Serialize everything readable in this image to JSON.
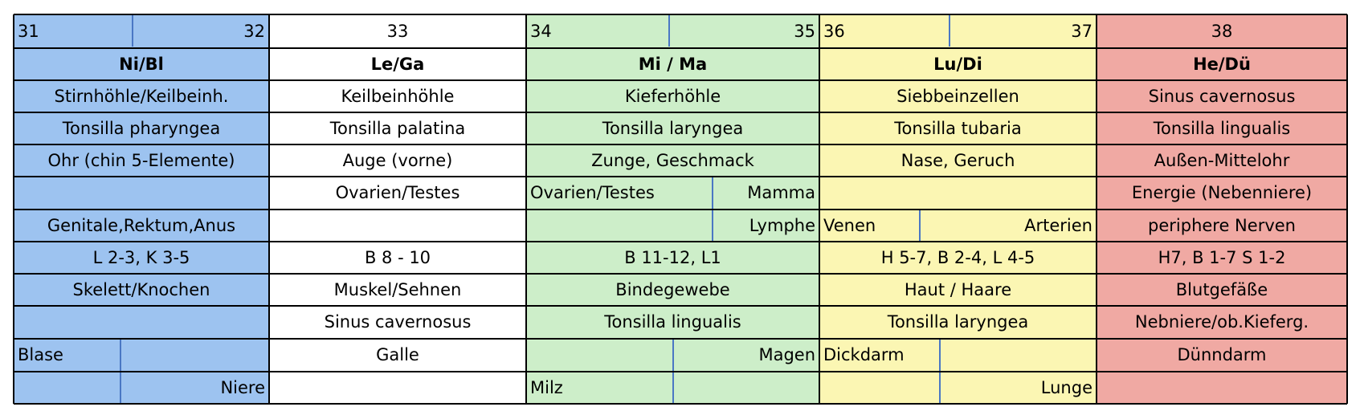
{
  "columns": [
    {
      "header_numbers": [
        "31",
        "32"
      ],
      "header": "Ni/Bl",
      "color": "#9dc3f0"
    },
    {
      "header_numbers": [
        "33"
      ],
      "header": "Le/Ga",
      "color": "#ffffff"
    },
    {
      "header_numbers": [
        "34",
        "35"
      ],
      "header": "Mi / Ma",
      "color": "#cdeec9"
    },
    {
      "header_numbers": [
        "36",
        "37"
      ],
      "header": "Lu/Di",
      "color": "#fbf6b3"
    },
    {
      "header_numbers": [
        "38"
      ],
      "header": "He/Dü",
      "color": "#f0a9a3"
    }
  ],
  "rows": [
    [
      "Stirnhöhle/Keilbeinh.",
      "Keilbeinhöhle",
      "Kieferhöhle",
      "Siebbeinzellen",
      "Sinus cavernosus"
    ],
    [
      "Tonsilla pharyngea",
      "Tonsilla palatina",
      "Tonsilla laryngea",
      "Tonsilla tubaria",
      "Tonsilla lingualis"
    ],
    [
      "Ohr (chin 5-Elemente)",
      "Auge (vorne)",
      "Zunge, Geschmack",
      "Nase, Geruch",
      "Außen-Mittelohr"
    ],
    [
      "",
      "Ovarien/Testes",
      [
        "Ovarien/Testes",
        "Mamma"
      ],
      "",
      "Energie (Nebenniere)"
    ],
    [
      "Genitale,Rektum,Anus",
      "",
      [
        "",
        "Lymphe"
      ],
      [
        "Venen",
        "Arterien"
      ],
      "periphere Nerven"
    ],
    [
      "L 2-3, K 3-5",
      "B 8 - 10",
      "B 11-12, L1",
      "H 5-7, B 2-4, L 4-5",
      "H7, B 1-7 S 1-2"
    ],
    [
      "Skelett/Knochen",
      "Muskel/Sehnen",
      "Bindegewebe",
      "Haut / Haare",
      "Blutgefäße"
    ],
    [
      "",
      "Sinus cavernosus",
      "Tonsilla lingualis",
      "Tonsilla laryngea",
      "Nebniere/ob.Kieferg."
    ],
    [
      [
        "Blase",
        ""
      ],
      "Galle",
      [
        "",
        "Magen"
      ],
      [
        "Dickdarm",
        ""
      ],
      "Dünndarm"
    ],
    [
      [
        "",
        "Niere"
      ],
      "",
      [
        "Milz",
        ""
      ],
      [
        "",
        "Lunge"
      ],
      ""
    ]
  ]
}
